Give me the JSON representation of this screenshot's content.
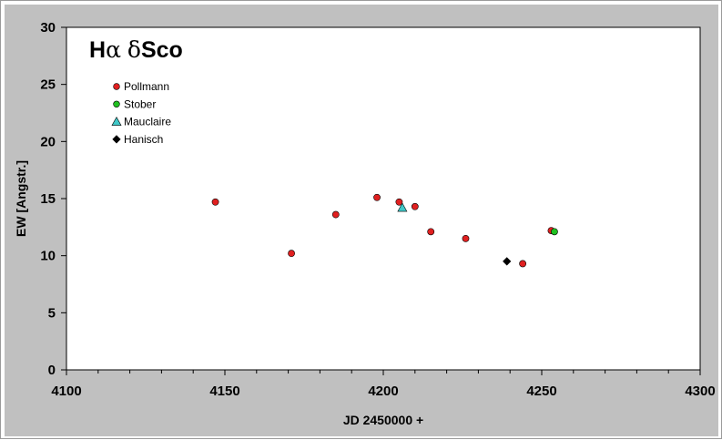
{
  "chart_data": {
    "type": "scatter",
    "title_parts": [
      "H",
      "α",
      " ",
      "δ",
      "Sco"
    ],
    "xlabel": "JD 2450000 +",
    "ylabel": "EW [Angstr.]",
    "xlim": [
      4100,
      4300
    ],
    "ylim": [
      0,
      30
    ],
    "x_ticks": [
      4100,
      4150,
      4200,
      4250,
      4300
    ],
    "y_ticks": [
      0,
      5,
      10,
      15,
      20,
      25,
      30
    ],
    "grid": false,
    "legend_position": "top-left",
    "background_color": "#c0c0c0",
    "plot_background_color": "#ffffff",
    "series": [
      {
        "name": "Pollmann",
        "marker": "circle",
        "color": "#e02020",
        "x": [
          4147,
          4171,
          4185,
          4198,
          4205,
          4210,
          4215,
          4226,
          4244,
          4253
        ],
        "y": [
          14.7,
          10.2,
          13.6,
          15.1,
          14.7,
          14.3,
          12.1,
          11.5,
          9.3,
          12.2
        ]
      },
      {
        "name": "Stober",
        "marker": "circle",
        "color": "#20c020",
        "x": [
          4254
        ],
        "y": [
          12.1
        ]
      },
      {
        "name": "Mauclaire",
        "marker": "triangle",
        "color": "#40c8c8",
        "x": [
          4206
        ],
        "y": [
          14.2
        ]
      },
      {
        "name": "Hanisch",
        "marker": "diamond",
        "color": "#000000",
        "x": [
          4239
        ],
        "y": [
          9.5
        ]
      }
    ]
  }
}
